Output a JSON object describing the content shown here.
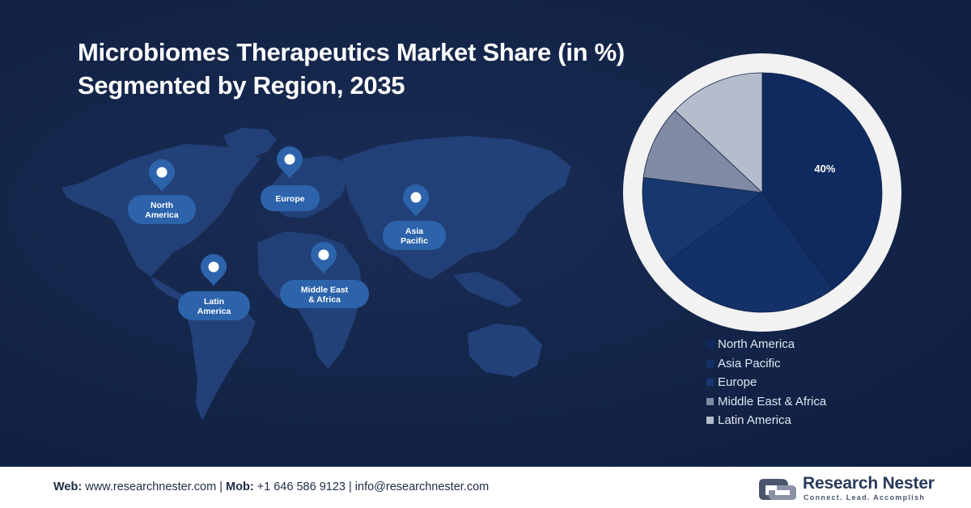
{
  "title_line1": "Microbiomes Therapeutics Market Share (in %)",
  "title_line2": "Segmented by Region, 2035",
  "map": {
    "pins": [
      {
        "line1": "North",
        "line2": "America"
      },
      {
        "line1": "Europe",
        "line2": ""
      },
      {
        "line1": "Asia",
        "line2": "Pacific"
      },
      {
        "line1": "Middle East",
        "line2": "& Africa"
      },
      {
        "line1": "Latin",
        "line2": "America"
      }
    ]
  },
  "chart_data": {
    "type": "pie",
    "title": "Microbiomes Therapeutics Market Share (in %) Segmented by Region, 2035",
    "categories": [
      "North America",
      "Asia Pacific",
      "Europe",
      "Middle East & Africa",
      "Latin America"
    ],
    "values": [
      40,
      25,
      12,
      10,
      13
    ],
    "data_labels": [
      "40%",
      "",
      "",
      "",
      ""
    ],
    "colors": [
      "#0f2a5e",
      "#133168",
      "#17386f",
      "#7f8aa3",
      "#b5bccb"
    ],
    "legend_position": "bottom-right"
  },
  "colors": {
    "background": "#132448",
    "pin": "#2c63ab",
    "pie_ring": "#f2f2f2"
  },
  "footer": {
    "web_label": "Web:",
    "web": "www.researchnester.com",
    "sep1": " | ",
    "mob_label": "Mob:",
    "mob": "+1 646 586 9123",
    "sep2": " | ",
    "email": "info@researchnester.com"
  },
  "brand": {
    "name": "Research Nester",
    "tagline": "Connect. Lead. Accomplish",
    "logo_icon": "research-nester-logo-icon"
  }
}
